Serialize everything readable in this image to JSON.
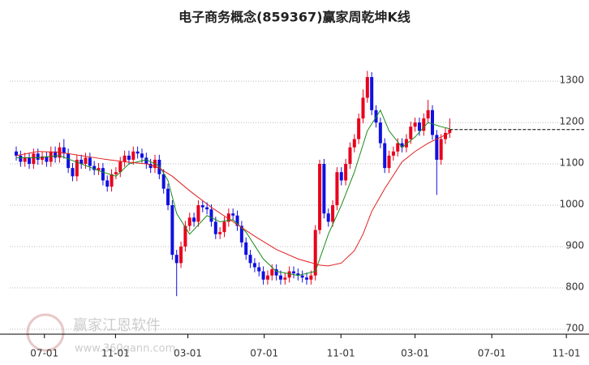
{
  "chart_data": {
    "type": "candlestick",
    "title": "电子商务概念(859367)赢家周乾坤K线",
    "watermark": [
      "赢家江恩软件",
      "www.360gann.com"
    ],
    "up_color": "#e8001c",
    "down_color": "#1010e0",
    "open": [
      1130,
      1120,
      1105,
      1115,
      1100,
      1125,
      1110,
      1118,
      1105,
      1130,
      1115,
      1140,
      1125,
      1090,
      1070,
      1110,
      1100,
      1115,
      1095,
      1085,
      1090,
      1060,
      1045,
      1075,
      1080,
      1105,
      1120,
      1110,
      1130,
      1125,
      1115,
      1100,
      1090,
      1110,
      1075,
      1040,
      1000,
      880,
      860,
      900,
      950,
      970,
      960,
      1000,
      995,
      990,
      960,
      930,
      935,
      960,
      980,
      975,
      950,
      910,
      880,
      860,
      850,
      840,
      820,
      830,
      845,
      830,
      820,
      825,
      840,
      835,
      830,
      825,
      820,
      830,
      940,
      1100,
      980,
      960,
      1000,
      1080,
      1060,
      1100,
      1140,
      1160,
      1210,
      1260,
      1310,
      1230,
      1200,
      1150,
      1090,
      1120,
      1130,
      1150,
      1140,
      1160,
      1190,
      1200,
      1180,
      1210,
      1230,
      1170,
      1110,
      1160,
      1175
    ],
    "high": [
      1142,
      1132,
      1127,
      1127,
      1137,
      1137,
      1130,
      1130,
      1142,
      1142,
      1152,
      1160,
      1137,
      1102,
      1122,
      1122,
      1127,
      1127,
      1107,
      1102,
      1102,
      1072,
      1087,
      1092,
      1117,
      1132,
      1132,
      1142,
      1142,
      1137,
      1127,
      1112,
      1122,
      1122,
      1087,
      1052,
      1012,
      892,
      912,
      962,
      982,
      982,
      1012,
      1012,
      1007,
      1002,
      972,
      947,
      972,
      992,
      992,
      987,
      962,
      922,
      892,
      872,
      862,
      852,
      842,
      857,
      857,
      842,
      837,
      852,
      852,
      847,
      842,
      837,
      842,
      952,
      1110,
      1112,
      992,
      1012,
      1092,
      1092,
      1112,
      1152,
      1172,
      1222,
      1280,
      1325,
      1322,
      1242,
      1212,
      1162,
      1132,
      1142,
      1162,
      1162,
      1172,
      1202,
      1212,
      1212,
      1222,
      1255,
      1242,
      1182,
      1172,
      1187,
      1210
    ],
    "low": [
      1108,
      1093,
      1093,
      1088,
      1088,
      1098,
      1098,
      1093,
      1093,
      1103,
      1103,
      1113,
      1078,
      1058,
      1058,
      1088,
      1088,
      1083,
      1073,
      1073,
      1048,
      1033,
      1033,
      1063,
      1068,
      1093,
      1098,
      1098,
      1113,
      1103,
      1088,
      1078,
      1078,
      1063,
      1028,
      988,
      868,
      780,
      848,
      888,
      938,
      948,
      948,
      983,
      978,
      948,
      918,
      918,
      923,
      948,
      963,
      938,
      898,
      868,
      848,
      838,
      828,
      808,
      808,
      818,
      818,
      808,
      808,
      813,
      823,
      818,
      813,
      808,
      808,
      818,
      930,
      968,
      948,
      948,
      988,
      1048,
      1048,
      1088,
      1128,
      1148,
      1198,
      1248,
      1218,
      1188,
      1138,
      1078,
      1078,
      1108,
      1118,
      1128,
      1128,
      1148,
      1178,
      1168,
      1168,
      1198,
      1158,
      1025,
      1098,
      1148,
      1163
    ],
    "close": [
      1120,
      1105,
      1115,
      1100,
      1125,
      1110,
      1118,
      1105,
      1130,
      1115,
      1140,
      1125,
      1090,
      1070,
      1110,
      1100,
      1115,
      1095,
      1085,
      1090,
      1060,
      1045,
      1075,
      1080,
      1105,
      1120,
      1110,
      1130,
      1125,
      1115,
      1100,
      1090,
      1110,
      1075,
      1040,
      1000,
      880,
      860,
      900,
      950,
      970,
      960,
      1000,
      995,
      990,
      960,
      930,
      935,
      960,
      980,
      975,
      950,
      910,
      880,
      860,
      850,
      840,
      820,
      830,
      845,
      830,
      820,
      825,
      840,
      835,
      830,
      825,
      820,
      830,
      940,
      1100,
      980,
      960,
      1000,
      1080,
      1060,
      1100,
      1140,
      1160,
      1210,
      1260,
      1310,
      1230,
      1200,
      1150,
      1090,
      1120,
      1130,
      1150,
      1140,
      1160,
      1190,
      1200,
      1180,
      1210,
      1230,
      1170,
      1110,
      1160,
      1175,
      1183
    ],
    "lines": [
      {
        "color": "#1a8a1a",
        "x": [
          0,
          5,
          10,
          15,
          20,
          23,
          26,
          30,
          33,
          35,
          37,
          40,
          44,
          47,
          50,
          53,
          57,
          60,
          65,
          69,
          72,
          75,
          78,
          81,
          84,
          86,
          89,
          92,
          95,
          98,
          100
        ],
        "values": [
          1115,
          1115,
          1120,
          1100,
          1080,
          1070,
          1100,
          1110,
          1095,
          1060,
          980,
          930,
          975,
          960,
          965,
          935,
          870,
          840,
          830,
          840,
          930,
          1000,
          1080,
          1180,
          1230,
          1180,
          1140,
          1165,
          1200,
          1190,
          1185
        ]
      },
      {
        "color": "#e02020",
        "x": [
          0,
          5,
          10,
          15,
          20,
          25,
          30,
          33,
          36,
          40,
          45,
          50,
          55,
          60,
          65,
          70,
          72,
          75,
          78,
          80,
          82,
          85,
          89,
          92,
          95,
          100
        ],
        "values": [
          1120,
          1130,
          1128,
          1120,
          1112,
          1105,
          1100,
          1090,
          1070,
          1035,
          995,
          960,
          925,
          893,
          870,
          855,
          853,
          860,
          890,
          930,
          985,
          1040,
          1105,
          1130,
          1150,
          1175
        ]
      }
    ],
    "xlim": [
      -1.5,
      131
    ],
    "xticks": [
      {
        "value": 6.5,
        "label": "07-01"
      },
      {
        "value": 22.9,
        "label": "11-01"
      },
      {
        "value": 39.6,
        "label": "03-01"
      },
      {
        "value": 57.2,
        "label": "07-01"
      },
      {
        "value": 74.9,
        "label": "11-01"
      },
      {
        "value": 92.0,
        "label": "03-01"
      },
      {
        "value": 109.7,
        "label": "07-01"
      },
      {
        "value": 126.9,
        "label": "11-01"
      }
    ],
    "ylim": [
      688,
      1418
    ],
    "yticks": [
      700,
      800,
      900,
      1000,
      1100,
      1200,
      1300
    ],
    "grid": true
  }
}
